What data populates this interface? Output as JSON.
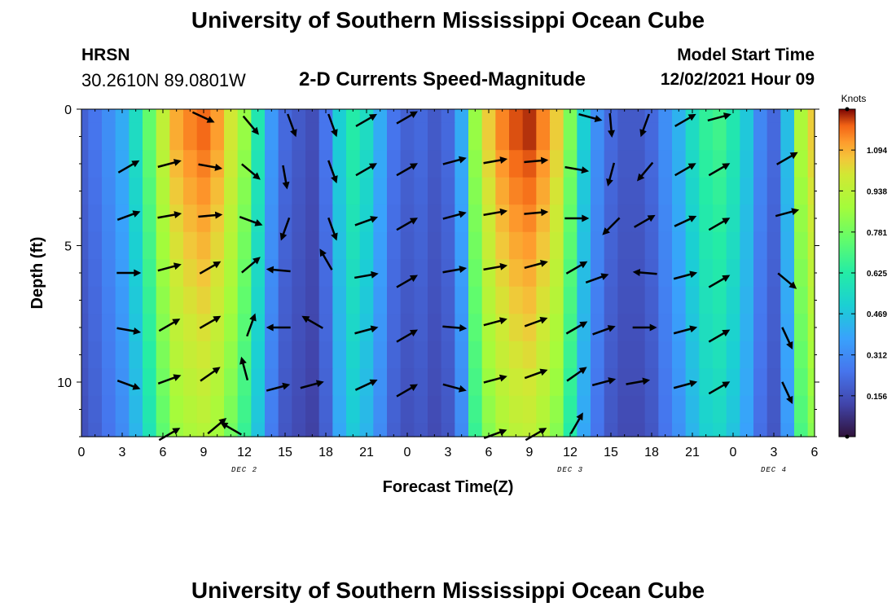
{
  "header": {
    "title": "University of Southern Mississippi Ocean Cube",
    "station": "HRSN",
    "coordinates": "30.2610N  89.0801W",
    "subtitle": "2-D Currents Speed-Magnitude",
    "model_start_label": "Model Start Time",
    "model_start_value": "12/02/2021 Hour 09"
  },
  "footer": {
    "title": "University of Southern Mississippi Ocean Cube"
  },
  "chart_data": {
    "type": "heatmap",
    "title": "2-D Currents Speed-Magnitude",
    "xlabel": "Forecast Time(Z)",
    "ylabel": "Depth (ft)",
    "xlim": [
      0,
      54
    ],
    "ylim": [
      0,
      12
    ],
    "x_ticks": [
      {
        "v": 0,
        "label": "0"
      },
      {
        "v": 3,
        "label": "3"
      },
      {
        "v": 6,
        "label": "6"
      },
      {
        "v": 9,
        "label": "9"
      },
      {
        "v": 12,
        "label": "12"
      },
      {
        "v": 15,
        "label": "15"
      },
      {
        "v": 18,
        "label": "18"
      },
      {
        "v": 21,
        "label": "21"
      },
      {
        "v": 24,
        "label": "0"
      },
      {
        "v": 27,
        "label": "3"
      },
      {
        "v": 30,
        "label": "6"
      },
      {
        "v": 33,
        "label": "9"
      },
      {
        "v": 36,
        "label": "12"
      },
      {
        "v": 39,
        "label": "15"
      },
      {
        "v": 42,
        "label": "18"
      },
      {
        "v": 45,
        "label": "21"
      },
      {
        "v": 48,
        "label": "0"
      },
      {
        "v": 51,
        "label": "3"
      },
      {
        "v": 54,
        "label": "6"
      }
    ],
    "y_ticks": [
      {
        "v": 0,
        "label": "0"
      },
      {
        "v": 5,
        "label": "5"
      },
      {
        "v": 10,
        "label": "10"
      }
    ],
    "day_labels": [
      {
        "v": 12,
        "label": "DEC 2"
      },
      {
        "v": 36,
        "label": "DEC 3"
      },
      {
        "v": 51,
        "label": "DEC 4"
      }
    ],
    "colorbar": {
      "title": "Knots",
      "min": 0.0,
      "max": 1.25,
      "ticks": [
        0.156,
        0.312,
        0.469,
        0.625,
        0.781,
        0.938,
        1.094
      ]
    },
    "speed_by_hour": [
      0.2,
      0.25,
      0.32,
      0.4,
      0.55,
      0.75,
      0.95,
      1.1,
      1.15,
      1.18,
      1.12,
      1.0,
      0.85,
      0.6,
      0.35,
      0.22,
      0.18,
      0.15,
      0.25,
      0.5,
      0.62,
      0.55,
      0.4,
      0.25,
      0.2,
      0.22,
      0.18,
      0.22,
      0.4,
      0.85,
      1.05,
      1.15,
      1.2,
      1.22,
      1.15,
      1.05,
      0.8,
      0.5,
      0.32,
      0.22,
      0.18,
      0.18,
      0.22,
      0.32,
      0.42,
      0.55,
      0.65,
      0.68,
      0.6,
      0.48,
      0.3,
      0.22,
      0.45,
      0.9,
      1.05
    ],
    "depth_factor": [
      1.0,
      1.0,
      0.98,
      0.96,
      0.94,
      0.92,
      0.9,
      0.88,
      0.86,
      0.84,
      0.82,
      0.8,
      0.78
    ],
    "vectors": [
      {
        "t": 9.0,
        "d": 0.3,
        "dir": 115
      },
      {
        "t": 12.5,
        "d": 0.6,
        "dir": 140
      },
      {
        "t": 15.5,
        "d": 0.6,
        "dir": 160
      },
      {
        "t": 18.5,
        "d": 0.6,
        "dir": 160
      },
      {
        "t": 21.0,
        "d": 0.4,
        "dir": 60
      },
      {
        "t": 24.0,
        "d": 0.3,
        "dir": 60
      },
      {
        "t": 37.5,
        "d": 0.3,
        "dir": 105
      },
      {
        "t": 39.0,
        "d": 0.6,
        "dir": 175
      },
      {
        "t": 41.5,
        "d": 0.6,
        "dir": 200
      },
      {
        "t": 44.5,
        "d": 0.4,
        "dir": 60
      },
      {
        "t": 47.0,
        "d": 0.3,
        "dir": 75
      },
      {
        "t": 3.5,
        "d": 2.1,
        "dir": 60
      },
      {
        "t": 6.5,
        "d": 2.0,
        "dir": 75
      },
      {
        "t": 9.5,
        "d": 2.1,
        "dir": 100
      },
      {
        "t": 12.5,
        "d": 2.3,
        "dir": 130
      },
      {
        "t": 15.0,
        "d": 2.5,
        "dir": 170
      },
      {
        "t": 18.5,
        "d": 2.3,
        "dir": 160
      },
      {
        "t": 21.0,
        "d": 2.2,
        "dir": 60
      },
      {
        "t": 24.0,
        "d": 2.2,
        "dir": 60
      },
      {
        "t": 27.5,
        "d": 1.9,
        "dir": 75
      },
      {
        "t": 30.5,
        "d": 1.9,
        "dir": 80
      },
      {
        "t": 33.5,
        "d": 1.9,
        "dir": 85
      },
      {
        "t": 36.5,
        "d": 2.2,
        "dir": 100
      },
      {
        "t": 39.0,
        "d": 2.4,
        "dir": 195
      },
      {
        "t": 41.5,
        "d": 2.3,
        "dir": 220
      },
      {
        "t": 44.5,
        "d": 2.2,
        "dir": 60
      },
      {
        "t": 47.0,
        "d": 2.2,
        "dir": 60
      },
      {
        "t": 52.0,
        "d": 1.8,
        "dir": 60
      },
      {
        "t": 3.5,
        "d": 3.9,
        "dir": 70
      },
      {
        "t": 6.5,
        "d": 3.9,
        "dir": 80
      },
      {
        "t": 9.5,
        "d": 3.9,
        "dir": 85
      },
      {
        "t": 12.5,
        "d": 4.1,
        "dir": 110
      },
      {
        "t": 15.0,
        "d": 4.4,
        "dir": 200
      },
      {
        "t": 18.5,
        "d": 4.4,
        "dir": 160
      },
      {
        "t": 21.0,
        "d": 4.1,
        "dir": 70
      },
      {
        "t": 24.0,
        "d": 4.2,
        "dir": 60
      },
      {
        "t": 27.5,
        "d": 3.9,
        "dir": 75
      },
      {
        "t": 30.5,
        "d": 3.8,
        "dir": 80
      },
      {
        "t": 33.5,
        "d": 3.8,
        "dir": 85
      },
      {
        "t": 36.5,
        "d": 4.0,
        "dir": 90
      },
      {
        "t": 39.0,
        "d": 4.3,
        "dir": 225
      },
      {
        "t": 41.5,
        "d": 4.1,
        "dir": 60
      },
      {
        "t": 44.5,
        "d": 4.1,
        "dir": 65
      },
      {
        "t": 47.0,
        "d": 4.2,
        "dir": 60
      },
      {
        "t": 52.0,
        "d": 3.8,
        "dir": 75
      },
      {
        "t": 3.5,
        "d": 6.0,
        "dir": 90
      },
      {
        "t": 6.5,
        "d": 5.8,
        "dir": 75
      },
      {
        "t": 9.5,
        "d": 5.8,
        "dir": 60
      },
      {
        "t": 12.5,
        "d": 5.7,
        "dir": 50
      },
      {
        "t": 14.5,
        "d": 5.9,
        "dir": 275
      },
      {
        "t": 18.0,
        "d": 5.5,
        "dir": 330
      },
      {
        "t": 21.0,
        "d": 6.1,
        "dir": 80
      },
      {
        "t": 24.0,
        "d": 6.3,
        "dir": 60
      },
      {
        "t": 27.5,
        "d": 5.9,
        "dir": 80
      },
      {
        "t": 30.5,
        "d": 5.8,
        "dir": 80
      },
      {
        "t": 33.5,
        "d": 5.7,
        "dir": 75
      },
      {
        "t": 36.5,
        "d": 5.8,
        "dir": 60
      },
      {
        "t": 38.0,
        "d": 6.2,
        "dir": 70
      },
      {
        "t": 41.5,
        "d": 6.0,
        "dir": 275
      },
      {
        "t": 44.5,
        "d": 6.1,
        "dir": 75
      },
      {
        "t": 47.0,
        "d": 6.3,
        "dir": 60
      },
      {
        "t": 52.0,
        "d": 6.3,
        "dir": 130
      },
      {
        "t": 3.5,
        "d": 8.1,
        "dir": 100
      },
      {
        "t": 6.5,
        "d": 7.9,
        "dir": 60
      },
      {
        "t": 9.5,
        "d": 7.8,
        "dir": 60
      },
      {
        "t": 12.5,
        "d": 7.9,
        "dir": 20
      },
      {
        "t": 14.5,
        "d": 8.0,
        "dir": 270
      },
      {
        "t": 17.0,
        "d": 7.8,
        "dir": 300
      },
      {
        "t": 21.0,
        "d": 8.1,
        "dir": 75
      },
      {
        "t": 24.0,
        "d": 8.3,
        "dir": 60
      },
      {
        "t": 27.5,
        "d": 8.0,
        "dir": 95
      },
      {
        "t": 30.5,
        "d": 7.8,
        "dir": 75
      },
      {
        "t": 33.5,
        "d": 7.8,
        "dir": 70
      },
      {
        "t": 36.5,
        "d": 8.0,
        "dir": 60
      },
      {
        "t": 38.5,
        "d": 8.1,
        "dir": 70
      },
      {
        "t": 41.5,
        "d": 8.0,
        "dir": 90
      },
      {
        "t": 44.5,
        "d": 8.1,
        "dir": 75
      },
      {
        "t": 47.0,
        "d": 8.3,
        "dir": 60
      },
      {
        "t": 52.0,
        "d": 8.4,
        "dir": 155
      },
      {
        "t": 3.5,
        "d": 10.1,
        "dir": 110
      },
      {
        "t": 6.5,
        "d": 9.9,
        "dir": 70
      },
      {
        "t": 9.5,
        "d": 9.7,
        "dir": 55
      },
      {
        "t": 12.0,
        "d": 9.5,
        "dir": 345
      },
      {
        "t": 14.5,
        "d": 10.2,
        "dir": 75
      },
      {
        "t": 17.0,
        "d": 10.1,
        "dir": 75
      },
      {
        "t": 21.0,
        "d": 10.1,
        "dir": 65
      },
      {
        "t": 24.0,
        "d": 10.3,
        "dir": 60
      },
      {
        "t": 27.5,
        "d": 10.2,
        "dir": 105
      },
      {
        "t": 30.5,
        "d": 9.9,
        "dir": 75
      },
      {
        "t": 33.5,
        "d": 9.7,
        "dir": 70
      },
      {
        "t": 36.5,
        "d": 9.7,
        "dir": 55
      },
      {
        "t": 38.5,
        "d": 10.0,
        "dir": 75
      },
      {
        "t": 41.0,
        "d": 10.0,
        "dir": 80
      },
      {
        "t": 44.5,
        "d": 10.1,
        "dir": 75
      },
      {
        "t": 47.0,
        "d": 10.2,
        "dir": 60
      },
      {
        "t": 52.0,
        "d": 10.4,
        "dir": 155
      },
      {
        "t": 6.5,
        "d": 11.9,
        "dir": 60
      },
      {
        "t": 10.0,
        "d": 11.6,
        "dir": 50
      },
      {
        "t": 11.0,
        "d": 11.7,
        "dir": 300
      },
      {
        "t": 30.5,
        "d": 11.9,
        "dir": 70
      },
      {
        "t": 33.5,
        "d": 11.9,
        "dir": 60
      },
      {
        "t": 36.5,
        "d": 11.5,
        "dir": 30
      }
    ]
  }
}
